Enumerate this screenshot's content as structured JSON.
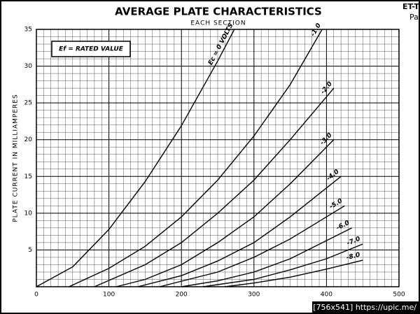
{
  "chart_data": {
    "type": "line",
    "title": "AVERAGE PLATE CHARACTERISTICS",
    "subtitle": "EACH SECTION",
    "y_label": "PLATE CURRENT IN MILLIAMPERES",
    "annotation": "Ef = RATED VALUE",
    "corner_text": [
      "ET-T",
      "Pa"
    ],
    "watermark": "[756x541] https://upic.me/",
    "xlim": [
      0,
      500
    ],
    "xticks": [
      0,
      100,
      200,
      300,
      400,
      500
    ],
    "ylim": [
      0,
      35
    ],
    "yticks": [
      5,
      10,
      15,
      20,
      25,
      30,
      35
    ],
    "grid": true,
    "series": [
      {
        "name": "Ec = 0 VOLTS",
        "color": "#000000",
        "x": [
          0,
          50,
          100,
          150,
          200,
          250,
          273
        ],
        "values": [
          0,
          2.7,
          7.8,
          14.3,
          21.9,
          30.7,
          35
        ]
      },
      {
        "name": "-1.0",
        "color": "#000000",
        "x": [
          45,
          100,
          150,
          200,
          250,
          300,
          350,
          394
        ],
        "values": [
          0,
          2.5,
          5.5,
          9.5,
          14.5,
          20.5,
          27.5,
          35
        ]
      },
      {
        "name": "-2.0",
        "color": "#000000",
        "x": [
          80,
          150,
          200,
          250,
          300,
          350,
          410
        ],
        "values": [
          0,
          3,
          6,
          10,
          14.5,
          20,
          27
        ]
      },
      {
        "name": "-3.0",
        "color": "#000000",
        "x": [
          110,
          150,
          200,
          250,
          300,
          350,
          410
        ],
        "values": [
          0,
          1,
          3,
          6,
          9.5,
          14,
          20
        ]
      },
      {
        "name": "-4.0",
        "color": "#000000",
        "x": [
          140,
          200,
          250,
          300,
          350,
          420
        ],
        "values": [
          0,
          1.5,
          3.5,
          6,
          9.5,
          15
        ]
      },
      {
        "name": "-5.0",
        "color": "#000000",
        "x": [
          170,
          250,
          300,
          350,
          425
        ],
        "values": [
          0,
          2,
          4,
          6.5,
          11
        ]
      },
      {
        "name": "-6.0",
        "color": "#000000",
        "x": [
          200,
          250,
          300,
          350,
          435
        ],
        "values": [
          0,
          0.8,
          2,
          3.8,
          8
        ]
      },
      {
        "name": "-7.0",
        "color": "#000000",
        "x": [
          230,
          300,
          350,
          400,
          450
        ],
        "values": [
          0,
          1,
          2.3,
          3.8,
          5.8
        ]
      },
      {
        "name": "-8.0",
        "color": "#000000",
        "x": [
          260,
          300,
          350,
          400,
          450
        ],
        "values": [
          0,
          0.5,
          1.3,
          2.4,
          3.6
        ]
      }
    ]
  }
}
